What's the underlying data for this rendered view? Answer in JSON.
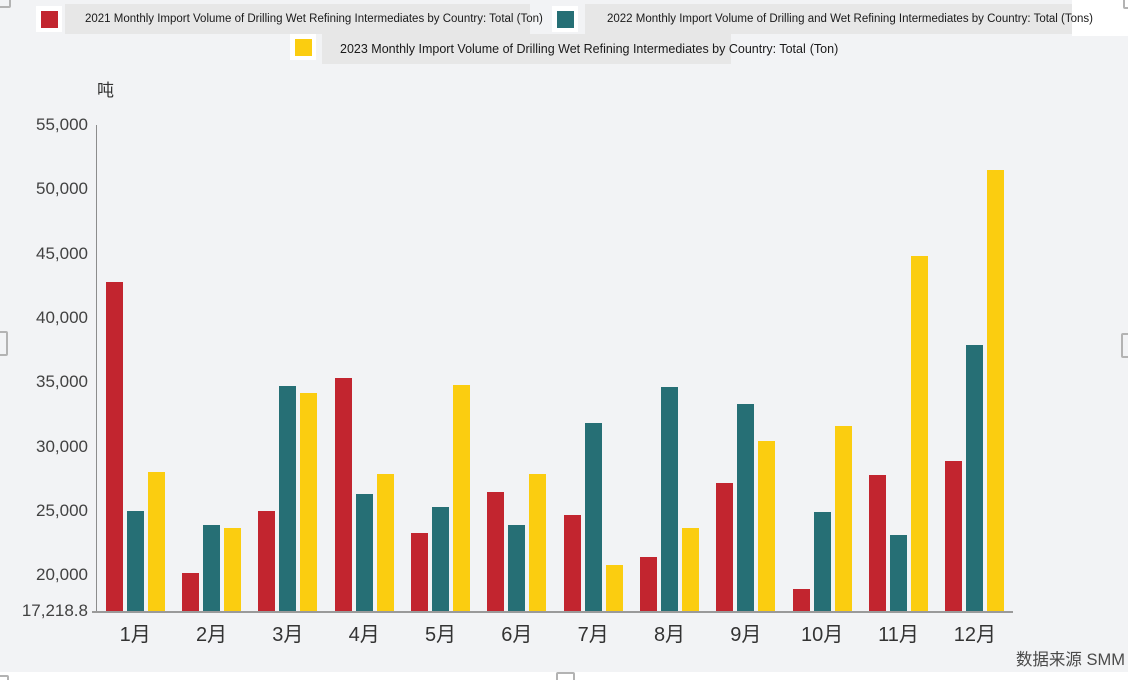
{
  "legend": {
    "items": [
      {
        "year": "2021",
        "color": "#c2252f",
        "label": "2021 Monthly Import Volume of Drilling Wet Refining Intermediates by Country: Total (Ton)"
      },
      {
        "year": "2022",
        "color": "#266f75",
        "label": "2022 Monthly Import Volume of Drilling and Wet Refining Intermediates by Country: Total (Tons)"
      },
      {
        "year": "2023",
        "color": "#fbcd10",
        "label_main": "2023 Monthly Import Volume of Drilling Wet Refining Intermediates by Country: Total",
        "label_tail": "(Ton)"
      }
    ]
  },
  "source_note": "数据来源 SMM",
  "chart_data": {
    "type": "bar",
    "title": "",
    "ylabel": "吨",
    "xlabel": "",
    "ylim": [
      17218.8,
      55000
    ],
    "grid": false,
    "legend_position": "top",
    "categories": [
      "1月",
      "2月",
      "3月",
      "4月",
      "5月",
      "6月",
      "7月",
      "8月",
      "9月",
      "10月",
      "11月",
      "12月"
    ],
    "y_ticks": [
      {
        "label": "55,000",
        "value": 55000
      },
      {
        "label": "50,000",
        "value": 50000
      },
      {
        "label": "45,000",
        "value": 45000
      },
      {
        "label": "40,000",
        "value": 40000
      },
      {
        "label": "35,000",
        "value": 35000
      },
      {
        "label": "30,000",
        "value": 30000
      },
      {
        "label": "25,000",
        "value": 25000
      },
      {
        "label": "20,000",
        "value": 20000
      },
      {
        "label": "17,218.8",
        "value": 17218.8
      }
    ],
    "series": [
      {
        "name": "2021 Monthly Import Volume of Drilling Wet Refining Intermediates by Country: Total (Ton)",
        "color": "#c2252f",
        "values": [
          42800,
          20200,
          25000,
          35300,
          23300,
          26500,
          24700,
          21400,
          27200,
          18900,
          27800,
          28900
        ]
      },
      {
        "name": "2022 Monthly Import Volume of Drilling and Wet Refining Intermediates by Country: Total (Tons)",
        "color": "#266f75",
        "values": [
          25000,
          23900,
          34700,
          26300,
          25300,
          23900,
          31800,
          34600,
          33300,
          24900,
          23100,
          37900
        ]
      },
      {
        "name": "2023 Monthly Import Volume of Drilling Wet Refining Intermediates by Country: Total (Ton)",
        "color": "#fbcd10",
        "values": [
          28000,
          23700,
          34200,
          27900,
          34800,
          27900,
          20800,
          23700,
          30400,
          31600,
          44800,
          51500
        ]
      }
    ]
  }
}
